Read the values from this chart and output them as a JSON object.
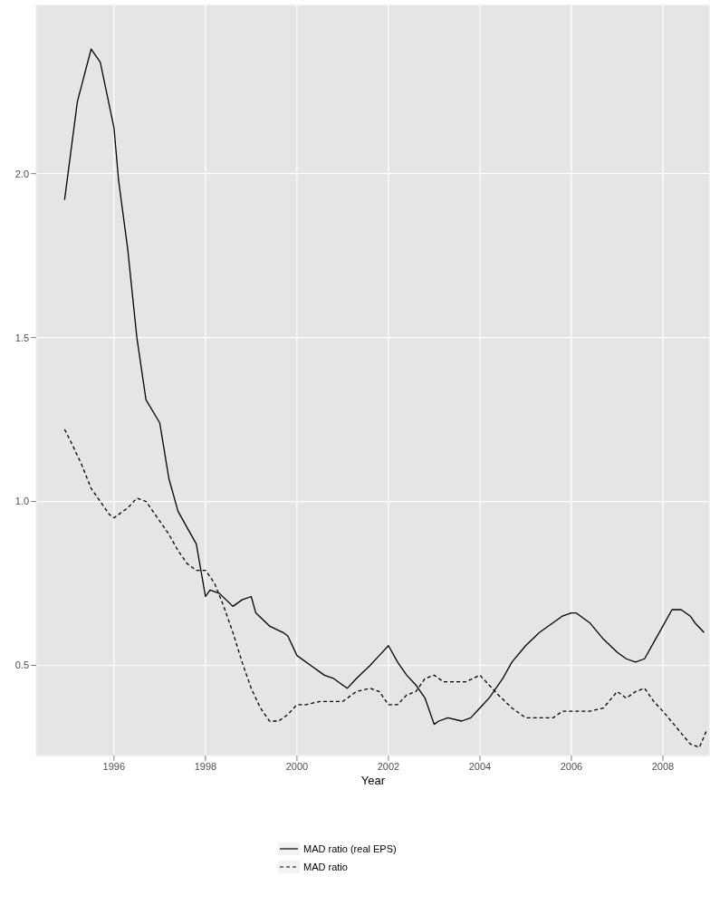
{
  "chart_data": {
    "type": "line",
    "xlabel": "Year",
    "xlim": [
      1994.3,
      2009.03
    ],
    "xticks": [
      1996,
      1998,
      2000,
      2002,
      2004,
      2006,
      2008
    ],
    "ylim": [
      0.225,
      2.516
    ],
    "yticks": [
      {
        "value": 0.5,
        "label": "0.5"
      },
      {
        "value": 1,
        "label": "1.0"
      },
      {
        "value": 1.5,
        "label": "1.5"
      },
      {
        "value": 2,
        "label": "2.0"
      }
    ],
    "grid": true,
    "legend": "bottom",
    "marker": "none",
    "series": [
      {
        "name": "MAD ratio (real EPS)",
        "color": "#000000",
        "line_style": "solid",
        "x": [
          1994.92,
          1995.2,
          1995.5,
          1995.7,
          1996.0,
          1996.1,
          1996.3,
          1996.5,
          1996.7,
          1997.0,
          1997.2,
          1997.4,
          1997.8,
          1998.0,
          1998.1,
          1998.3,
          1998.6,
          1998.8,
          1999.0,
          1999.1,
          1999.4,
          1999.7,
          1999.8,
          2000.0,
          2000.3,
          2000.6,
          2000.8,
          2001.0,
          2001.1,
          2001.3,
          2001.6,
          2001.8,
          2002.0,
          2002.2,
          2002.4,
          2002.6,
          2002.8,
          2003.0,
          2003.1,
          2003.3,
          2003.6,
          2003.8,
          2004.0,
          2004.2,
          2004.5,
          2004.7,
          2005.0,
          2005.3,
          2005.5,
          2005.8,
          2006.0,
          2006.1,
          2006.4,
          2006.7,
          2007.0,
          2007.2,
          2007.4,
          2007.6,
          2007.8,
          2008.0,
          2008.2,
          2008.4,
          2008.6,
          2008.7,
          2008.9
        ],
        "values": [
          1.92,
          2.22,
          2.38,
          2.34,
          2.14,
          1.98,
          1.77,
          1.5,
          1.31,
          1.24,
          1.07,
          0.97,
          0.87,
          0.71,
          0.73,
          0.72,
          0.68,
          0.7,
          0.71,
          0.66,
          0.62,
          0.6,
          0.59,
          0.53,
          0.5,
          0.47,
          0.46,
          0.44,
          0.43,
          0.46,
          0.5,
          0.53,
          0.56,
          0.51,
          0.47,
          0.44,
          0.4,
          0.32,
          0.33,
          0.34,
          0.33,
          0.34,
          0.37,
          0.4,
          0.46,
          0.51,
          0.56,
          0.6,
          0.62,
          0.65,
          0.66,
          0.66,
          0.63,
          0.58,
          0.54,
          0.52,
          0.51,
          0.52,
          0.57,
          0.62,
          0.67,
          0.67,
          0.65,
          0.63,
          0.6
        ]
      },
      {
        "name": "MAD ratio",
        "color": "#000000",
        "line_style": "dashed",
        "x": [
          1994.92,
          1995.1,
          1995.3,
          1995.5,
          1995.7,
          1995.9,
          1996.0,
          1996.3,
          1996.5,
          1996.7,
          1996.9,
          1997.2,
          1997.4,
          1997.6,
          1997.8,
          1998.0,
          1998.2,
          1998.4,
          1998.6,
          1998.8,
          1999.0,
          1999.2,
          1999.4,
          1999.6,
          1999.8,
          2000.0,
          2000.2,
          2000.5,
          2000.8,
          2001.0,
          2001.3,
          2001.6,
          2001.8,
          2002.0,
          2002.2,
          2002.4,
          2002.6,
          2002.8,
          2003.0,
          2003.2,
          2003.5,
          2003.7,
          2004.0,
          2004.2,
          2004.4,
          2004.7,
          2005.0,
          2005.3,
          2005.6,
          2005.8,
          2006.0,
          2006.4,
          2006.7,
          2007.0,
          2007.2,
          2007.4,
          2007.6,
          2007.8,
          2008.0,
          2008.3,
          2008.6,
          2008.8,
          2008.95
        ],
        "values": [
          1.22,
          1.17,
          1.11,
          1.04,
          1.0,
          0.96,
          0.95,
          0.98,
          1.01,
          1.0,
          0.96,
          0.9,
          0.85,
          0.81,
          0.79,
          0.79,
          0.75,
          0.68,
          0.6,
          0.51,
          0.43,
          0.37,
          0.33,
          0.33,
          0.35,
          0.38,
          0.38,
          0.39,
          0.39,
          0.39,
          0.42,
          0.43,
          0.42,
          0.38,
          0.38,
          0.41,
          0.42,
          0.46,
          0.47,
          0.45,
          0.45,
          0.45,
          0.47,
          0.44,
          0.41,
          0.37,
          0.34,
          0.34,
          0.34,
          0.36,
          0.36,
          0.36,
          0.37,
          0.42,
          0.4,
          0.42,
          0.43,
          0.39,
          0.36,
          0.31,
          0.26,
          0.25,
          0.3
        ]
      }
    ]
  }
}
